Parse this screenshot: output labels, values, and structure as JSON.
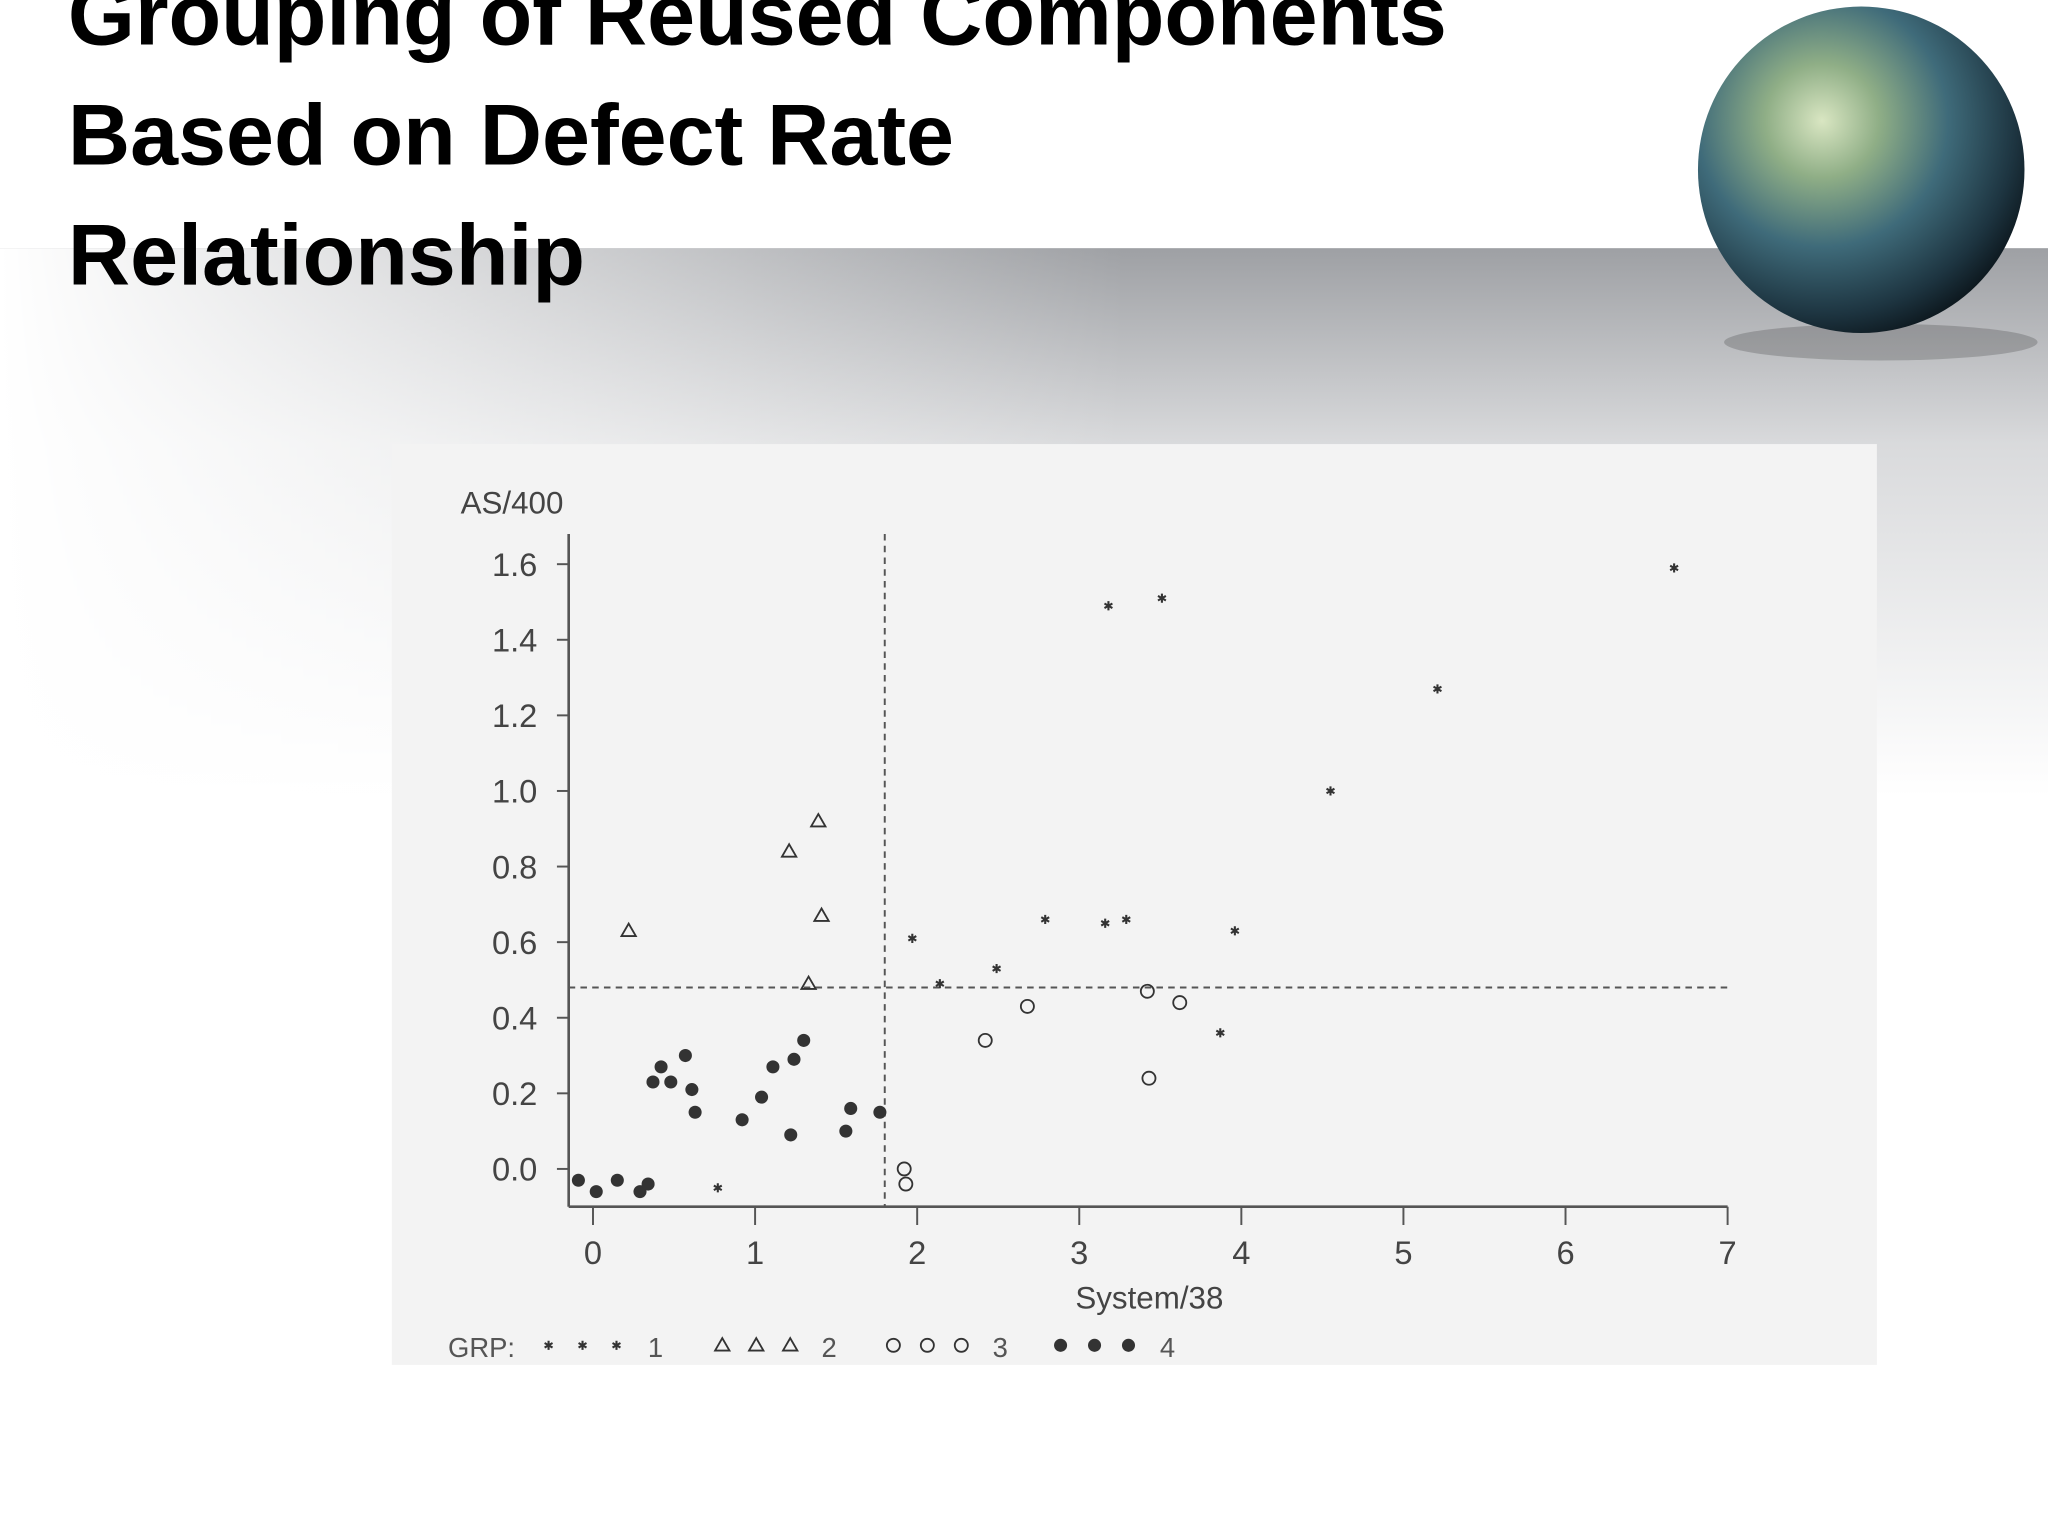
{
  "chart_data": {
    "type": "scatter",
    "title": [
      "Grouping of Reused Components",
      "Based on Defect Rate",
      "Relationship"
    ],
    "x_label": "System/38",
    "y_label": "AS/400",
    "legend_title": "GRP:",
    "xlim": [
      -0.15,
      7
    ],
    "ylim": [
      -0.1,
      1.68
    ],
    "xticks": [
      0,
      1,
      2,
      3,
      4,
      5,
      6,
      7
    ],
    "yticks": [
      {
        "value": 0,
        "label": "0.0"
      },
      0.2,
      0.4,
      0.6,
      0.8,
      {
        "value": 1,
        "label": "1.0"
      },
      1.2,
      1.4,
      1.6
    ],
    "vlines": [
      1.8
    ],
    "hlines": [
      0.48
    ],
    "series": [
      {
        "name": "1",
        "marker": "star",
        "color": "#333333",
        "x": [
          3.18,
          3.51,
          6.67,
          5.21,
          4.55,
          1.97,
          2.14,
          2.49,
          2.79,
          3.16,
          3.29,
          3.96,
          3.87,
          0.77
        ],
        "y": [
          1.49,
          1.51,
          1.59,
          1.27,
          1.0,
          0.61,
          0.49,
          0.53,
          0.66,
          0.65,
          0.66,
          0.63,
          0.36,
          -0.05
        ]
      },
      {
        "name": "2",
        "marker": "triangle",
        "color": "#333333",
        "x": [
          0.22,
          1.21,
          1.39,
          1.41,
          1.33
        ],
        "y": [
          0.63,
          0.84,
          0.92,
          0.67,
          0.49
        ]
      },
      {
        "name": "3",
        "marker": "circle",
        "color": "#333333",
        "x": [
          2.42,
          2.68,
          3.42,
          3.62,
          3.43,
          1.92,
          1.93
        ],
        "y": [
          0.34,
          0.43,
          0.47,
          0.44,
          0.24,
          0.0,
          -0.04
        ]
      },
      {
        "name": "4",
        "marker": "dot",
        "color": "#333333",
        "x": [
          -0.09,
          0.02,
          0.15,
          0.29,
          0.34,
          0.37,
          0.42,
          0.48,
          0.57,
          0.61,
          0.63,
          0.92,
          1.04,
          1.11,
          1.22,
          1.24,
          1.3,
          1.56,
          1.59,
          1.77
        ],
        "y": [
          -0.03,
          -0.06,
          -0.03,
          -0.06,
          -0.04,
          0.23,
          0.27,
          0.23,
          0.3,
          0.21,
          0.15,
          0.13,
          0.19,
          0.27,
          0.09,
          0.29,
          0.34,
          0.1,
          0.16,
          0.15
        ]
      }
    ]
  }
}
